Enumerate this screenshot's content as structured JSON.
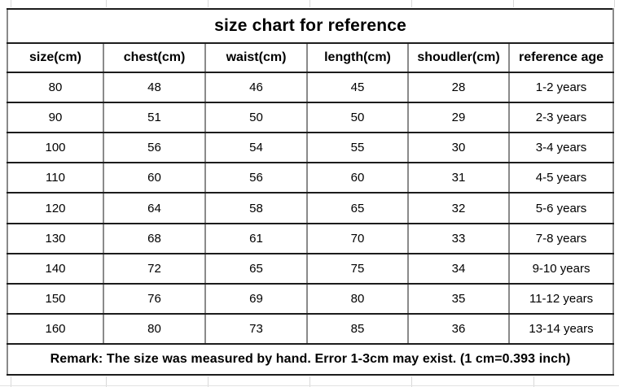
{
  "chart_data": {
    "type": "table",
    "title": "size chart for reference",
    "columns": [
      "size(cm)",
      "chest(cm)",
      "waist(cm)",
      "length(cm)",
      "shoudler(cm)",
      "reference age"
    ],
    "rows": [
      [
        "80",
        "48",
        "46",
        "45",
        "28",
        "1-2 years"
      ],
      [
        "90",
        "51",
        "50",
        "50",
        "29",
        "2-3 years"
      ],
      [
        "100",
        "56",
        "54",
        "55",
        "30",
        "3-4 years"
      ],
      [
        "110",
        "60",
        "56",
        "60",
        "31",
        "4-5 years"
      ],
      [
        "120",
        "64",
        "58",
        "65",
        "32",
        "5-6 years"
      ],
      [
        "130",
        "68",
        "61",
        "70",
        "33",
        "7-8 years"
      ],
      [
        "140",
        "72",
        "65",
        "75",
        "34",
        "9-10 years"
      ],
      [
        "150",
        "76",
        "69",
        "80",
        "35",
        "11-12 years"
      ],
      [
        "160",
        "80",
        "73",
        "85",
        "36",
        "13-14 years"
      ]
    ],
    "remark": "Remark: The size was measured by hand. Error 1-3cm may exist. (1 cm=0.393 inch)",
    "layout": {
      "legend": "none",
      "grid": "all-cell-borders"
    }
  },
  "colors": {
    "background": "#ffffff",
    "horizontal_border": "#1c1c1c",
    "vertical_border": "#8a8a8a",
    "sheet_gridline": "#d9d9d9",
    "text": "#000000"
  }
}
